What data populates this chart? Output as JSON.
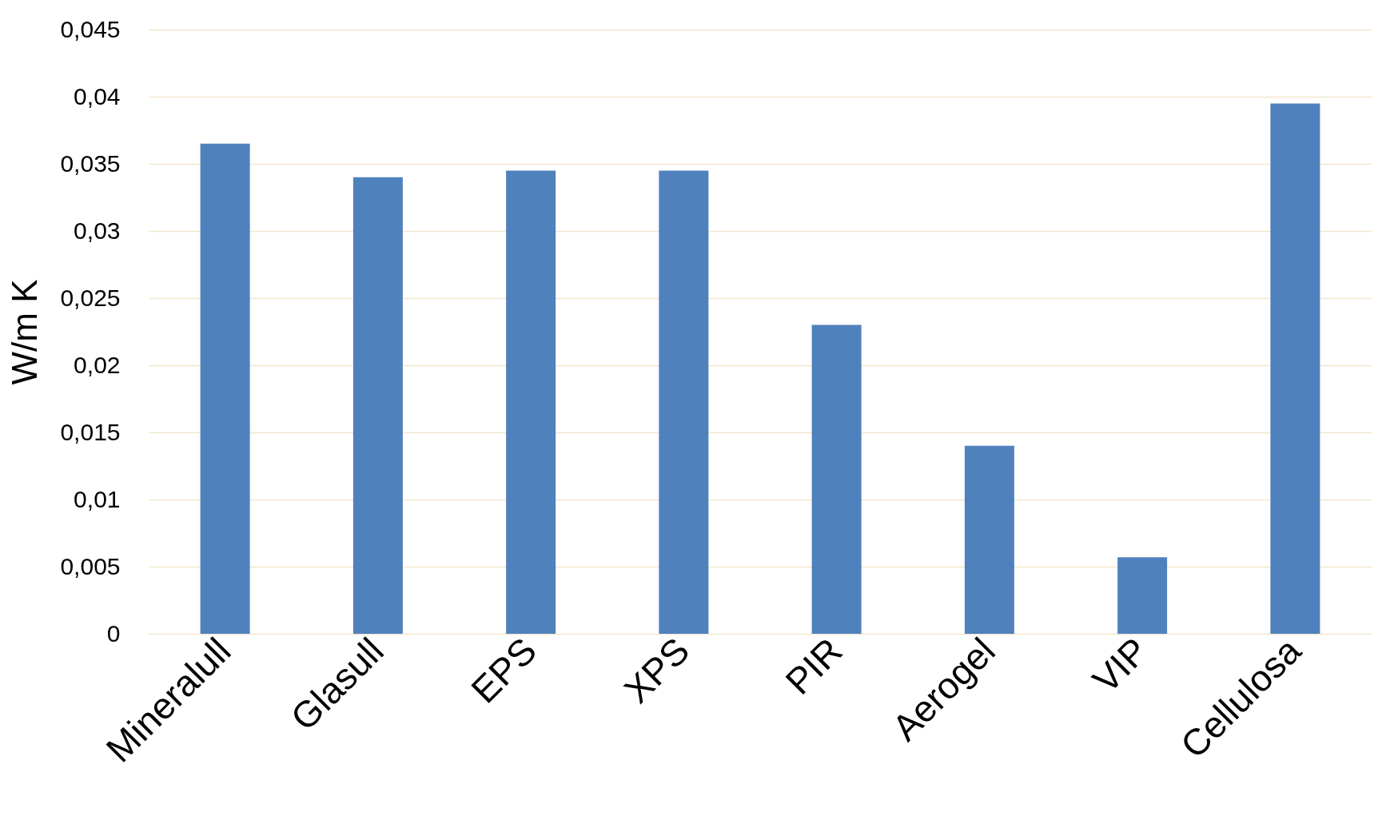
{
  "chart_data": {
    "type": "bar",
    "ylabel": "W/m K",
    "categories": [
      "Mineralull",
      "Glasull",
      "EPS",
      "XPS",
      "PIR",
      "Aerogel",
      "VIP",
      "Cellulosa"
    ],
    "values": [
      0.0365,
      0.034,
      0.0345,
      0.0345,
      0.023,
      0.014,
      0.0057,
      0.0395
    ],
    "color": "#4f81bd",
    "ylim": [
      0,
      0.045
    ],
    "yticks": [
      0,
      {
        "value": 0.005,
        "label": "0,005"
      },
      {
        "value": 0.01,
        "label": "0,01"
      },
      {
        "value": 0.015,
        "label": "0,015"
      },
      {
        "value": 0.02,
        "label": "0,02"
      },
      {
        "value": 0.025,
        "label": "0,025"
      },
      {
        "value": 0.03,
        "label": "0,03"
      },
      {
        "value": 0.035,
        "label": "0,035"
      },
      {
        "value": 0.04,
        "label": "0,04"
      },
      {
        "value": 0.045,
        "label": "0,045"
      }
    ],
    "grid": "y"
  }
}
